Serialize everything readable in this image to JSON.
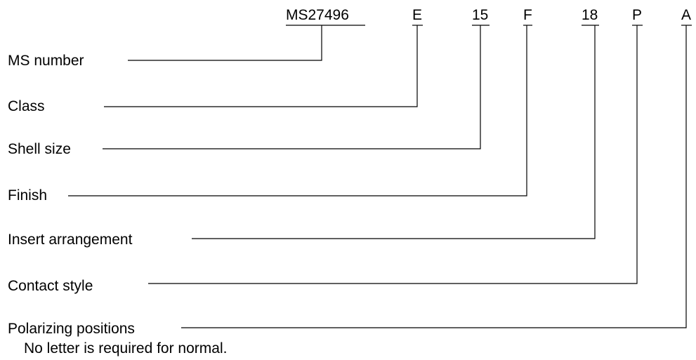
{
  "diagram": {
    "code_parts": [
      "MS27496",
      "E",
      "15",
      "F",
      "18",
      "P",
      "A"
    ],
    "labels": [
      "MS number",
      "Class",
      "Shell size",
      "Finish",
      "Insert arrangement",
      "Contact style",
      "Polarizing positions"
    ],
    "note": "No letter is required for normal.",
    "line_color": "#000000",
    "text_color": "#000000",
    "background": "#ffffff"
  }
}
